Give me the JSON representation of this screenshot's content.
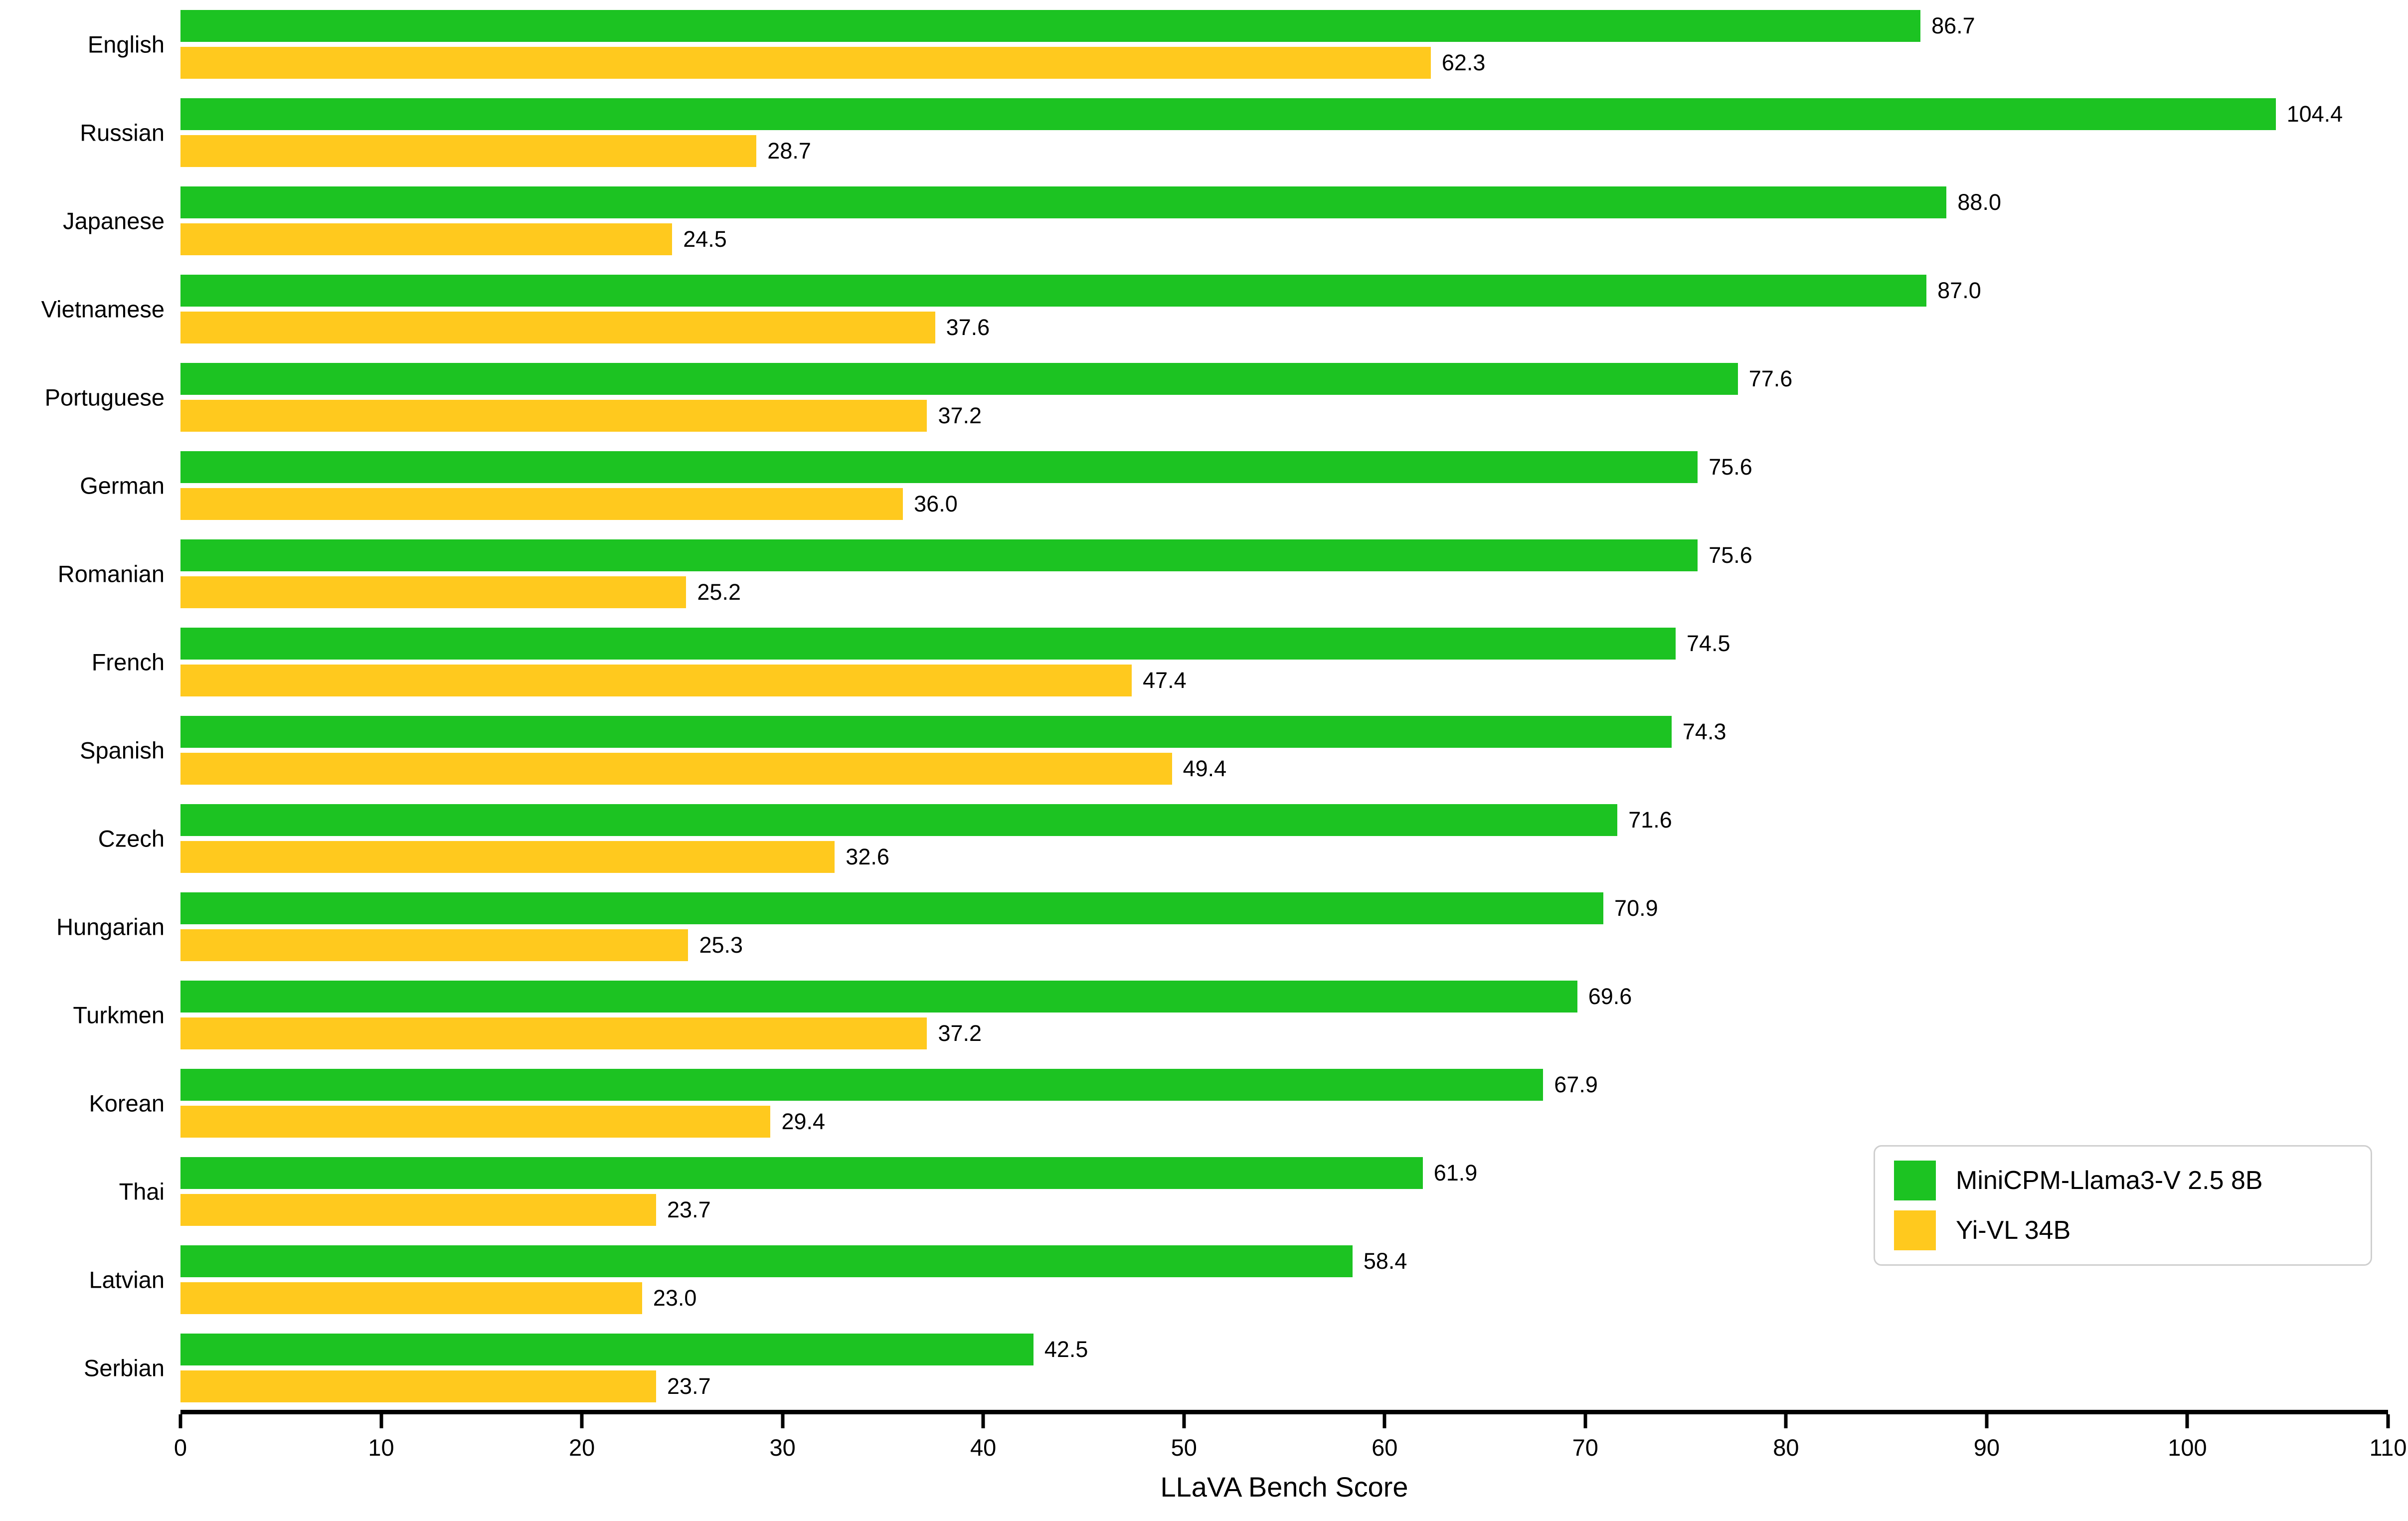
{
  "chart_data": {
    "type": "bar",
    "orientation": "horizontal",
    "title": "",
    "xlabel": "LLaVA Bench Score",
    "xlim": [
      0,
      110
    ],
    "xticks": [
      0,
      10,
      20,
      30,
      40,
      50,
      60,
      70,
      80,
      90,
      100,
      110
    ],
    "grid": false,
    "value_labels": true,
    "value_decimals": 1,
    "legend_position": "lower-right",
    "categories": [
      "English",
      "Russian",
      "Japanese",
      "Vietnamese",
      "Portuguese",
      "German",
      "Romanian",
      "French",
      "Spanish",
      "Czech",
      "Hungarian",
      "Turkmen",
      "Korean",
      "Thai",
      "Latvian",
      "Serbian"
    ],
    "series": [
      {
        "name": "MiniCPM-Llama3-V 2.5 8B",
        "color": "#1cc322",
        "values": [
          86.7,
          104.4,
          88.0,
          87.0,
          77.6,
          75.6,
          75.6,
          74.5,
          74.3,
          71.6,
          70.9,
          69.6,
          67.9,
          61.9,
          58.4,
          42.5
        ]
      },
      {
        "name": "Yi-VL 34B",
        "color": "#ffc91e",
        "values": [
          62.3,
          28.7,
          24.5,
          37.6,
          37.2,
          36.0,
          25.2,
          47.4,
          49.4,
          32.6,
          25.3,
          37.2,
          29.4,
          23.7,
          23.0,
          23.7
        ]
      }
    ],
    "axis_color": "#000000",
    "text_color": "#000000",
    "legend_border_color": "#cfcfcf"
  }
}
